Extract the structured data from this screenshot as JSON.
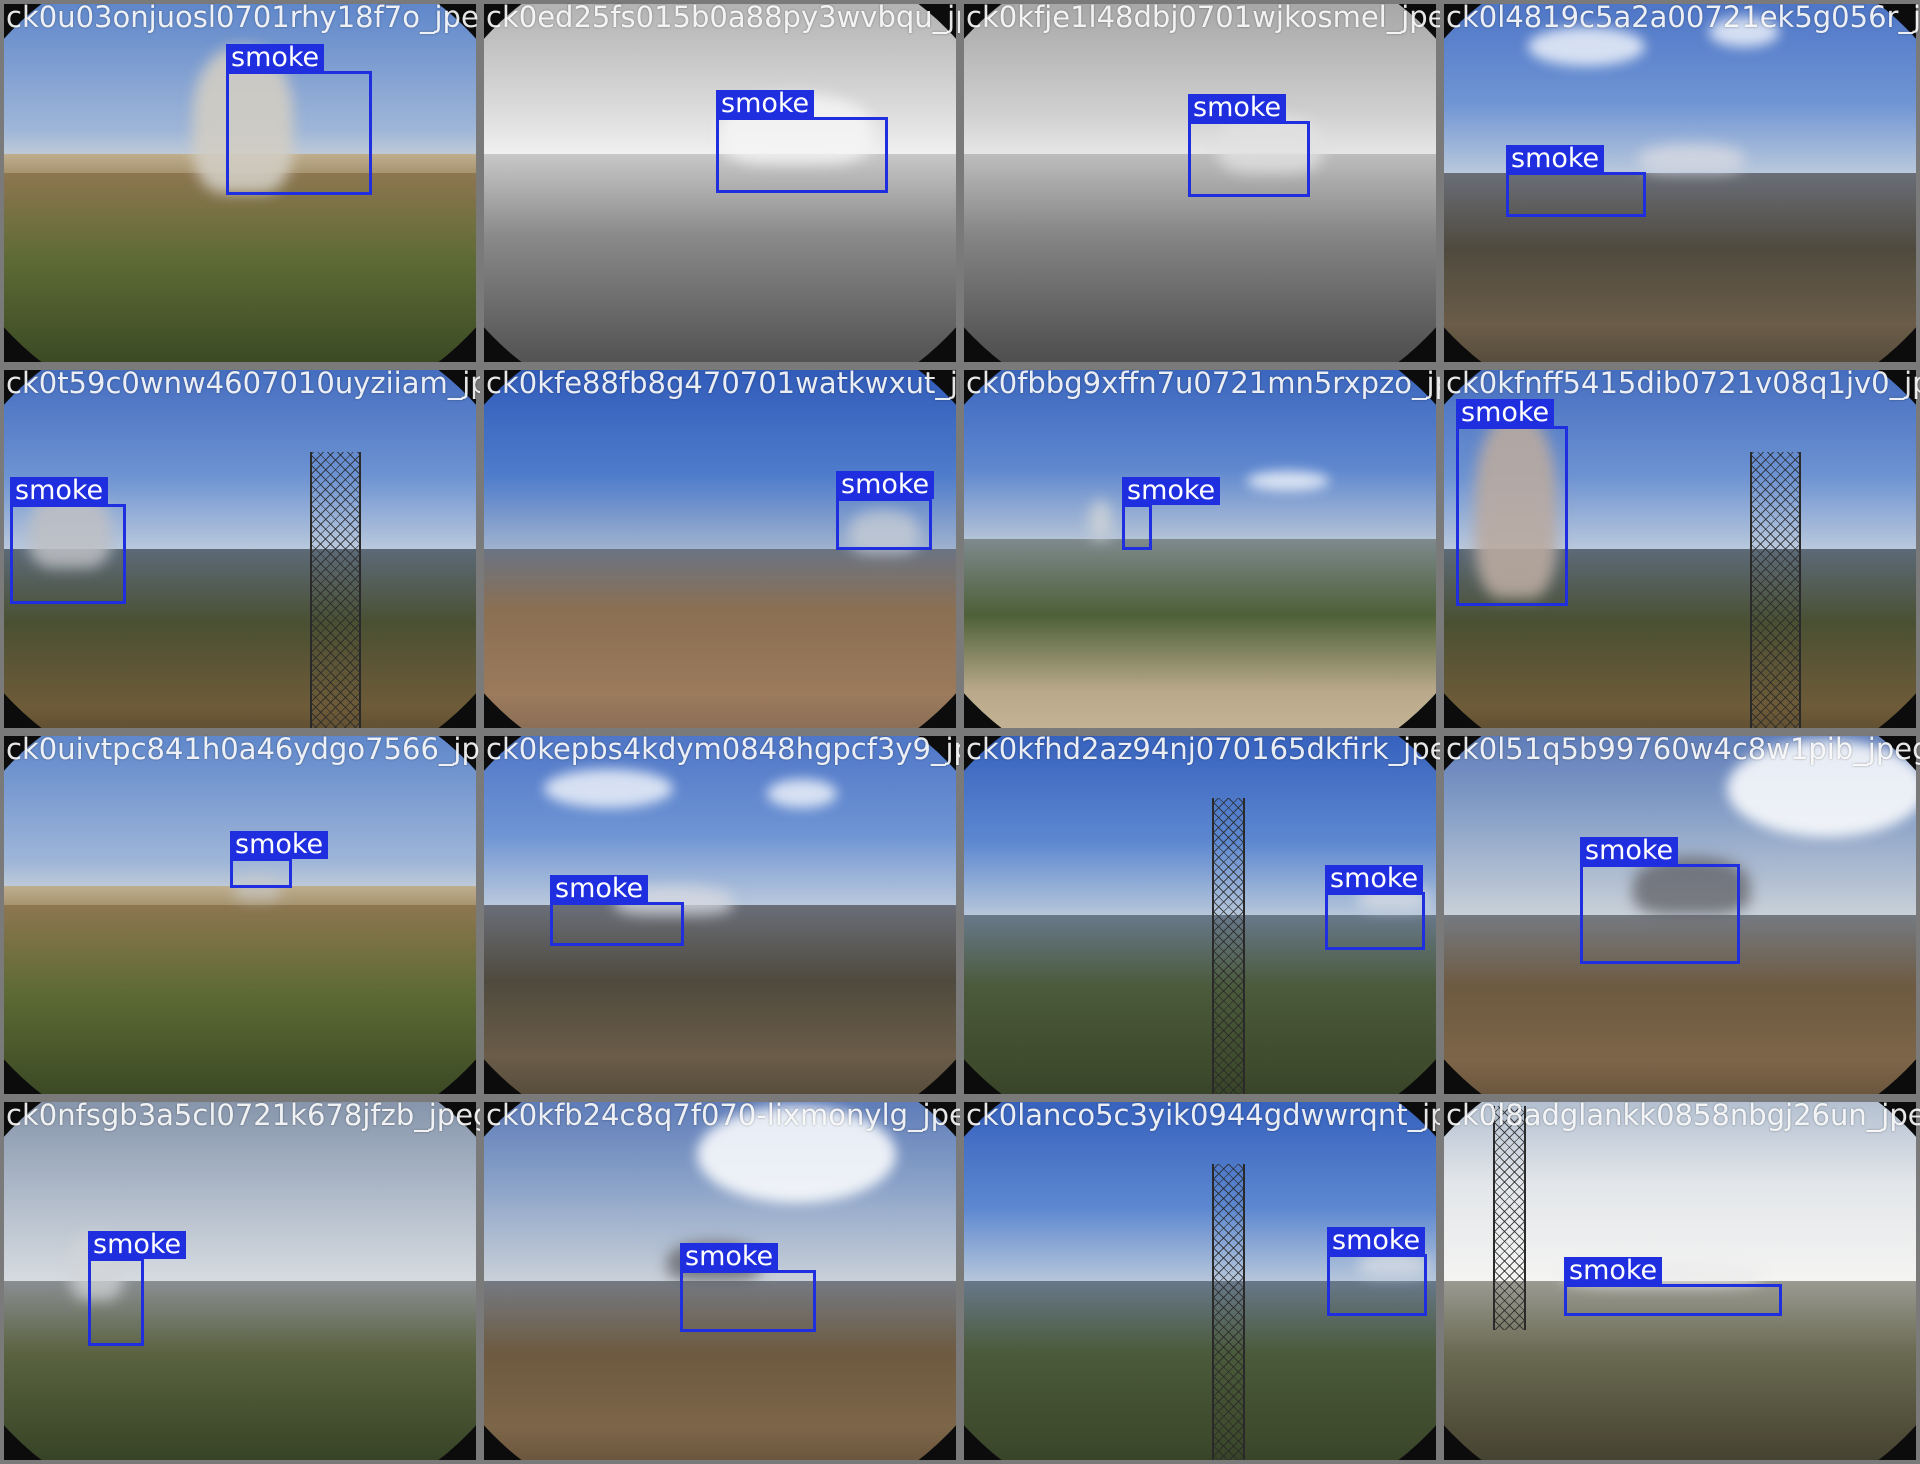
{
  "grid": {
    "columns": 4,
    "rows": 4,
    "tiles": [
      {
        "filename": "ck0u03onjuosl0701rhy18f7o_jpeg.rf.",
        "label": "smoke",
        "scene": "brown-hills-lake",
        "grayscale": false
      },
      {
        "filename": "ck0ed25fs015b0a88py3wvbqu_jpeg.rf.",
        "label": "smoke",
        "scene": "valley",
        "grayscale": true
      },
      {
        "filename": "ck0kfje1l48dbj0701wjkosmel_jpeg.rf.",
        "label": "smoke",
        "scene": "valley",
        "grayscale": true
      },
      {
        "filename": "ck0l4819c5a2a00721ek5g056r_jpeg.rf.",
        "label": "smoke",
        "scene": "boulder-field",
        "grayscale": false
      },
      {
        "filename": "ck0t59c0wnw4607010uyziiam_jpeg.rf.",
        "label": "smoke",
        "scene": "tower-ridge",
        "grayscale": false
      },
      {
        "filename": "ck0kfe88fb8g470701watkwxut_jpeg.rf.",
        "label": "smoke",
        "scene": "helipad",
        "grayscale": false
      },
      {
        "filename": "ck0fbbg9xffn7u0721mn5rxpzo_jpeg.rf.",
        "label": "smoke",
        "scene": "green-valley",
        "grayscale": false
      },
      {
        "filename": "ck0kfnff5415dib0721v08q1jv0_jpeg.rf.",
        "label": "smoke",
        "scene": "tower-ridge",
        "grayscale": false
      },
      {
        "filename": "ck0uivtpc841h0a46ydgo7566_jpeg.rf.",
        "label": "smoke",
        "scene": "brown-hills-lake",
        "grayscale": false
      },
      {
        "filename": "ck0kepbs4kdym0848hgpcf3y9_jpeg.rf.",
        "label": "smoke",
        "scene": "boulder-field",
        "grayscale": false
      },
      {
        "filename": "ck0kfhd2az94nj070165dkfirk_jpeg.rf.",
        "label": "smoke",
        "scene": "lattice-tower",
        "grayscale": false
      },
      {
        "filename": "ck0l51q5b99760w4c8w1pib_jpeg.rf.",
        "label": "smoke",
        "scene": "cloudy-hills",
        "grayscale": false
      },
      {
        "filename": "ck0nfsgb3a5cl0721k678jfzb_jpeg.rf.",
        "label": "smoke",
        "scene": "overcast-pole",
        "grayscale": false
      },
      {
        "filename": "ck0kfb24c8q7f070-lixmonylg_jpeg.rf.",
        "label": "smoke",
        "scene": "cloudy-hills",
        "grayscale": false
      },
      {
        "filename": "ck0lanco5c3yik0944gdwwrqnt_jpeg.rf.",
        "label": "smoke",
        "scene": "lattice-tower",
        "grayscale": false
      },
      {
        "filename": "ck0l8adglankk0858nbgj26un_jpeg.rf.",
        "label": "smoke",
        "scene": "hazy-tower",
        "grayscale": false
      }
    ]
  },
  "colors": {
    "frame": "#7a7a7a",
    "box": "#1f2fe0",
    "label_text": "#ffffff"
  }
}
